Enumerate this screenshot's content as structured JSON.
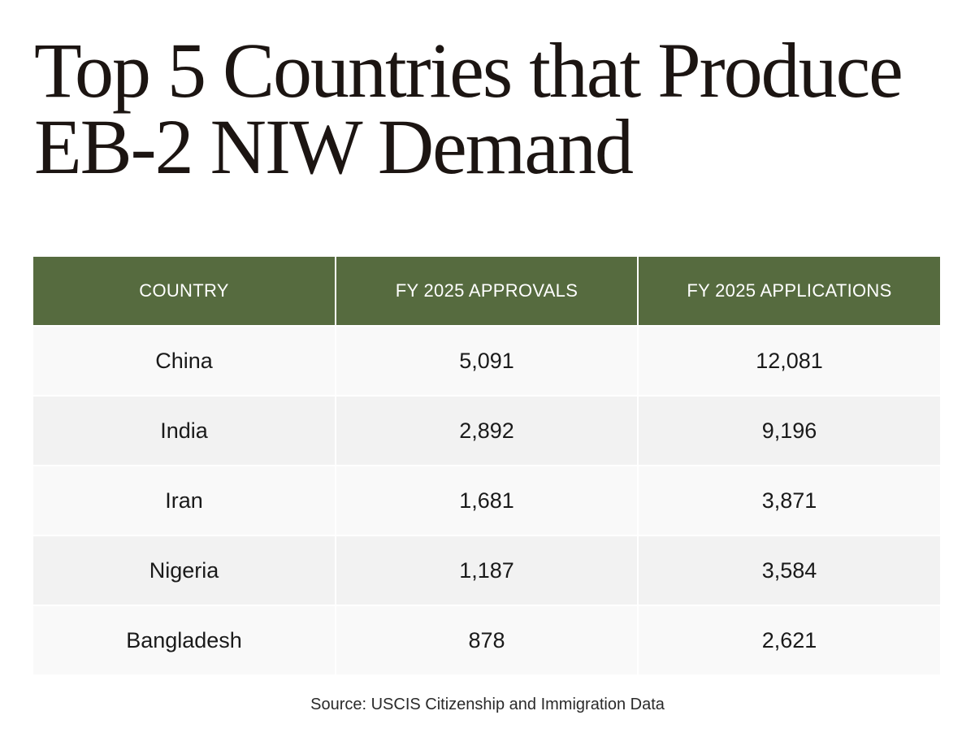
{
  "title": {
    "line1": "Top 5 Countries that Produce",
    "line2": "EB-2 NIW Demand"
  },
  "table": {
    "headers": [
      "COUNTRY",
      "FY 2025 APPROVALS",
      "FY 2025 APPLICATIONS"
    ],
    "rows": [
      {
        "country": "China",
        "approvals": "5,091",
        "applications": "12,081"
      },
      {
        "country": "India",
        "approvals": "2,892",
        "applications": "9,196"
      },
      {
        "country": "Iran",
        "approvals": "1,681",
        "applications": "3,871"
      },
      {
        "country": "Nigeria",
        "approvals": "1,187",
        "applications": "3,584"
      },
      {
        "country": "Bangladesh",
        "approvals": "878",
        "applications": "2,621"
      }
    ]
  },
  "source": "Source: USCIS Citizenship and Immigration Data",
  "colors": {
    "header_bg": "#566b3f",
    "header_text": "#ffffff",
    "row_light": "#f9f9f9",
    "row_dark": "#f2f2f2",
    "title_text": "#1c1512"
  }
}
